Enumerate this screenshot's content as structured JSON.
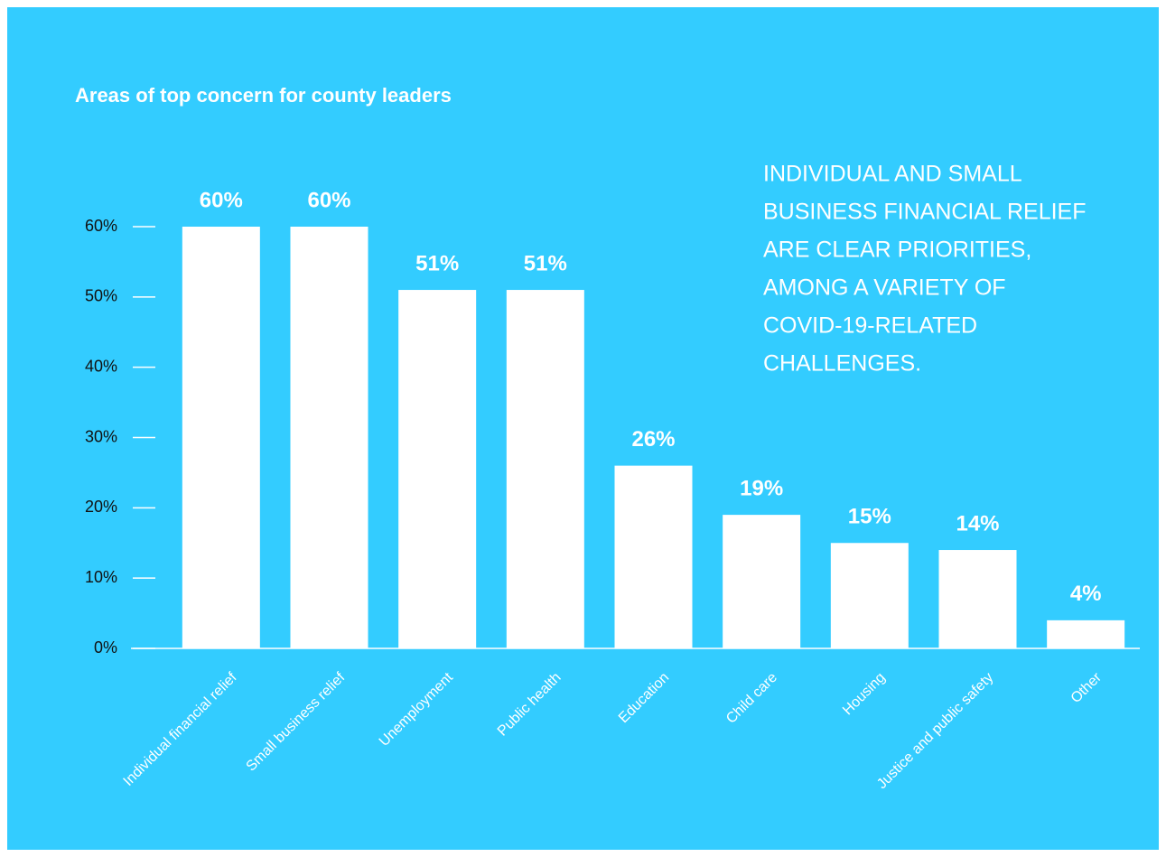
{
  "chart_data": {
    "type": "bar",
    "title": "Areas of top concern for county leaders",
    "annotation": [
      "INDIVIDUAL AND SMALL",
      "BUSINESS FINANCIAL RELIEF",
      "ARE CLEAR PRIORITIES,",
      "AMONG A VARIETY OF",
      "COVID-19-RELATED",
      "CHALLENGES."
    ],
    "categories": [
      "Individual financial relief",
      "Small business relief",
      "Unemployment",
      "Public health",
      "Education",
      "Child care",
      "Housing",
      "Justice and public safety",
      "Other"
    ],
    "values": [
      60,
      60,
      51,
      51,
      26,
      19,
      15,
      14,
      4
    ],
    "value_labels": [
      "60%",
      "60%",
      "51%",
      "51%",
      "26%",
      "19%",
      "15%",
      "14%",
      "4%"
    ],
    "color": "#ffffff",
    "ylim": [
      0,
      60
    ],
    "yticks": [
      {
        "value": 0,
        "label": "0%"
      },
      {
        "value": 10,
        "label": "10%"
      },
      {
        "value": 20,
        "label": "20%"
      },
      {
        "value": 30,
        "label": "30%"
      },
      {
        "value": 40,
        "label": "40%"
      },
      {
        "value": 50,
        "label": "50%"
      },
      {
        "value": 60,
        "label": "60%"
      }
    ]
  }
}
